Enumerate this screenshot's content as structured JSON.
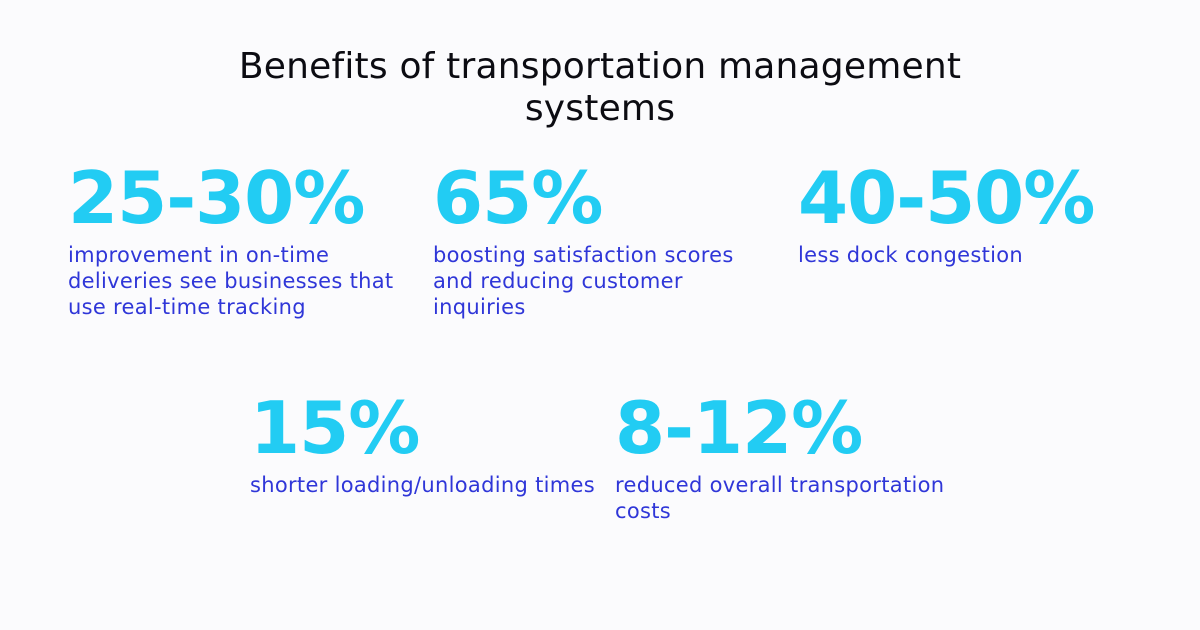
{
  "title": {
    "line1": "Benefits of transportation management",
    "line2": "systems"
  },
  "stats": [
    {
      "value": "25-30%",
      "description": "improvement in on-time deliveries see businesses that use real-time tracking"
    },
    {
      "value": "65%",
      "description": "boosting satisfaction scores and reducing customer inquiries"
    },
    {
      "value": "40-50%",
      "description": "less dock congestion"
    },
    {
      "value": "15%",
      "description": "shorter loading/unloading times"
    },
    {
      "value": "8-12%",
      "description": "reduced overall transportation costs"
    }
  ],
  "colors": {
    "background": "#fbfbfd",
    "title": "#0c0c12",
    "value": "#22ccf3",
    "description": "#2f36d8"
  }
}
